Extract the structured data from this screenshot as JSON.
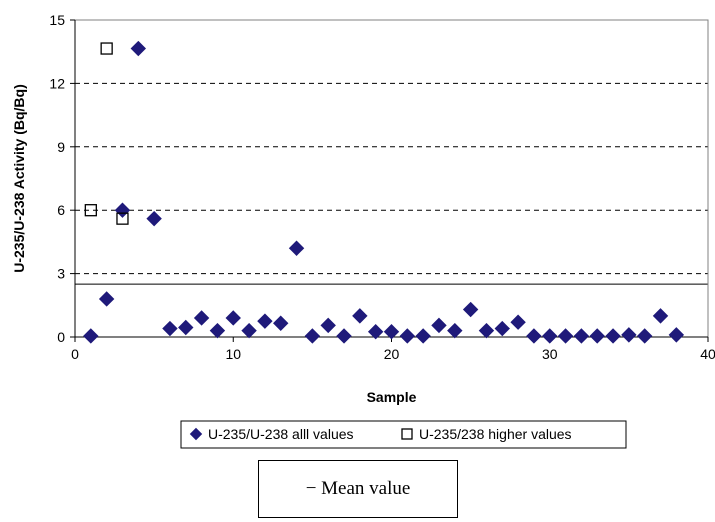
{
  "chart_data": {
    "type": "scatter",
    "xlabel": "Sample",
    "ylabel": "U-235/U-238 Activity (Bq/Bq)",
    "xlim": [
      0,
      40
    ],
    "ylim": [
      0,
      15
    ],
    "xticks": [
      "0",
      "10",
      "20",
      "30",
      "40"
    ],
    "yticks": [
      "0",
      "3",
      "6",
      "9",
      "12",
      "15"
    ],
    "grid": "horizontal dashed",
    "legend_position": "bottom",
    "series": [
      {
        "name": "U-235/U-238 alll values",
        "marker": "filled-diamond",
        "color": "#1f1a7a",
        "x": [
          1,
          2,
          3,
          4,
          5,
          6,
          7,
          8,
          9,
          10,
          11,
          12,
          13,
          14,
          15,
          16,
          17,
          18,
          19,
          20,
          21,
          22,
          23,
          24,
          25,
          26,
          27,
          28,
          29,
          30,
          31,
          32,
          33,
          34,
          35,
          36,
          37,
          38
        ],
        "y": [
          0.05,
          1.8,
          6.0,
          13.65,
          5.6,
          0.4,
          0.45,
          0.9,
          0.3,
          0.9,
          0.3,
          0.75,
          0.65,
          4.2,
          0.05,
          0.55,
          0.05,
          1.0,
          0.25,
          0.25,
          0.05,
          0.05,
          0.55,
          0.3,
          1.3,
          0.3,
          0.4,
          0.7,
          0.05,
          0.05,
          0.05,
          0.05,
          0.05,
          0.05,
          0.1,
          0.05,
          1.0,
          0.1
        ]
      },
      {
        "name": "U-235/238 higher values",
        "marker": "open-square",
        "color": "#000000",
        "x": [
          1,
          2,
          3
        ],
        "y": [
          6.0,
          13.65,
          5.6
        ]
      }
    ]
  },
  "mean_label": "− Mean value"
}
